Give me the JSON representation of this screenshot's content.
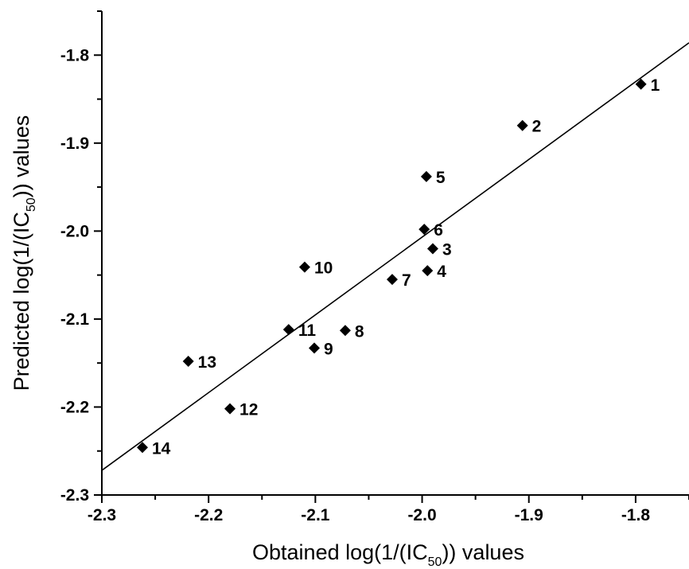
{
  "chart_data": {
    "type": "scatter",
    "xlabel": {
      "pre": "Obtained log(1/(IC",
      "sub": "50",
      "post": ")) values"
    },
    "ylabel": {
      "pre": "Predicted log(1/(IC",
      "sub": "50",
      "post": ")) values"
    },
    "xlim": [
      -2.3,
      -1.75
    ],
    "ylim": [
      -2.3,
      -1.75
    ],
    "x_ticks": [
      -2.3,
      -2.2,
      -2.1,
      -2.0,
      -1.9,
      -1.8
    ],
    "x_tick_labels": [
      "-2.3",
      "-2.2",
      "-2.1",
      "-2.0",
      "-1.9",
      "-1.8"
    ],
    "y_ticks": [
      -2.3,
      -2.2,
      -2.1,
      -2.0,
      -1.9,
      -1.8
    ],
    "y_tick_labels": [
      "-2.3",
      "-2.2",
      "-2.1",
      "-2.0",
      "-1.9",
      "-1.8"
    ],
    "grid": false,
    "marker": "diamond",
    "points": [
      {
        "label": "1",
        "x": -1.795,
        "y": -1.833
      },
      {
        "label": "2",
        "x": -1.906,
        "y": -1.88
      },
      {
        "label": "3",
        "x": -1.99,
        "y": -2.02
      },
      {
        "label": "4",
        "x": -1.995,
        "y": -2.045
      },
      {
        "label": "5",
        "x": -1.996,
        "y": -1.938
      },
      {
        "label": "6",
        "x": -1.998,
        "y": -1.998
      },
      {
        "label": "7",
        "x": -2.028,
        "y": -2.055
      },
      {
        "label": "8",
        "x": -2.072,
        "y": -2.113
      },
      {
        "label": "9",
        "x": -2.101,
        "y": -2.133
      },
      {
        "label": "10",
        "x": -2.11,
        "y": -2.041
      },
      {
        "label": "11",
        "x": -2.125,
        "y": -2.112
      },
      {
        "label": "12",
        "x": -2.18,
        "y": -2.202
      },
      {
        "label": "13",
        "x": -2.219,
        "y": -2.148
      },
      {
        "label": "14",
        "x": -2.262,
        "y": -2.246
      }
    ],
    "fit_line": {
      "x": [
        -2.3,
        -1.75
      ],
      "y": [
        -2.272,
        -1.786
      ]
    }
  }
}
